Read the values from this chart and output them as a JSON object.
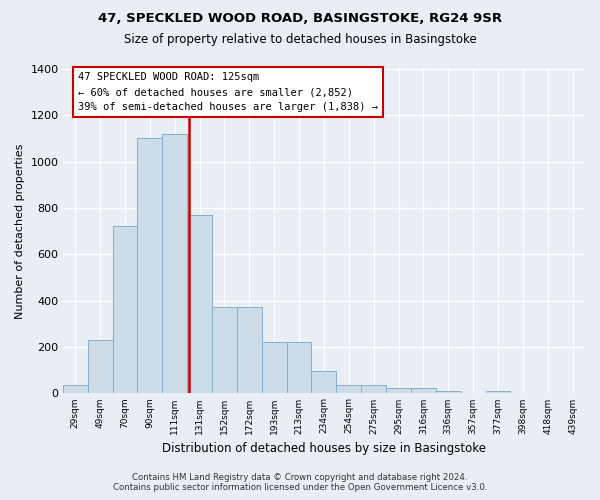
{
  "title": "47, SPECKLED WOOD ROAD, BASINGSTOKE, RG24 9SR",
  "subtitle": "Size of property relative to detached houses in Basingstoke",
  "xlabel": "Distribution of detached houses by size in Basingstoke",
  "ylabel": "Number of detached properties",
  "bin_labels": [
    "29sqm",
    "49sqm",
    "70sqm",
    "90sqm",
    "111sqm",
    "131sqm",
    "152sqm",
    "172sqm",
    "193sqm",
    "213sqm",
    "234sqm",
    "254sqm",
    "275sqm",
    "295sqm",
    "316sqm",
    "336sqm",
    "357sqm",
    "377sqm",
    "398sqm",
    "418sqm",
    "439sqm"
  ],
  "bar_heights": [
    35,
    230,
    720,
    1100,
    1120,
    770,
    370,
    370,
    220,
    220,
    95,
    35,
    35,
    20,
    20,
    10,
    0,
    10,
    0,
    0,
    0
  ],
  "bar_color": "#ccdce8",
  "bar_edge_color": "#88afc8",
  "vline_color": "#cc0000",
  "vline_pos": 5.5,
  "annotation_line1": "47 SPECKLED WOOD ROAD: 125sqm",
  "annotation_line2": "← 60% of detached houses are smaller (2,852)",
  "annotation_line3": "39% of semi-detached houses are larger (1,838) →",
  "ylim": [
    0,
    1400
  ],
  "yticks": [
    0,
    200,
    400,
    600,
    800,
    1000,
    1200,
    1400
  ],
  "footer_line1": "Contains HM Land Registry data © Crown copyright and database right 2024.",
  "footer_line2": "Contains public sector information licensed under the Open Government Licence v3.0.",
  "bg_color": "#e8eef4"
}
